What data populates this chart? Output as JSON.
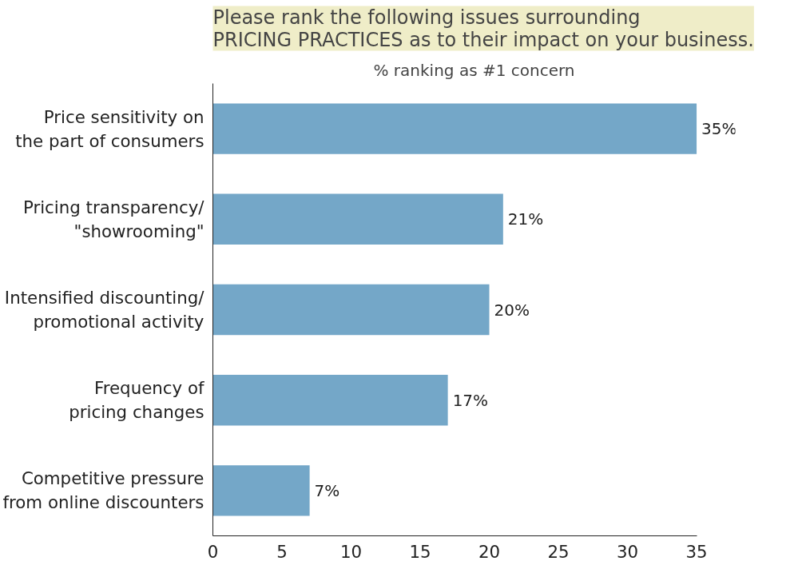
{
  "chart_data": {
    "type": "bar",
    "orientation": "horizontal",
    "title": "Please rank the following issues surrounding\nPRICING PRACTICES as to their impact on your business.",
    "subtitle": "% ranking as #1 concern",
    "categories": [
      "Price sensitivity on\nthe part of consumers",
      "Pricing transparency/\n\"showrooming\"",
      "Intensified discounting/\npromotional activity",
      "Frequency of\npricing changes",
      "Competitive pressure\nfrom online discounters"
    ],
    "values": [
      35,
      21,
      20,
      17,
      7
    ],
    "value_labels": [
      "35%",
      "21%",
      "20%",
      "17%",
      "7%"
    ],
    "color": "#74a7c8",
    "xlim": [
      0,
      35
    ],
    "xticks": [
      0,
      5,
      10,
      15,
      20,
      25,
      30,
      35
    ],
    "grid": false
  }
}
